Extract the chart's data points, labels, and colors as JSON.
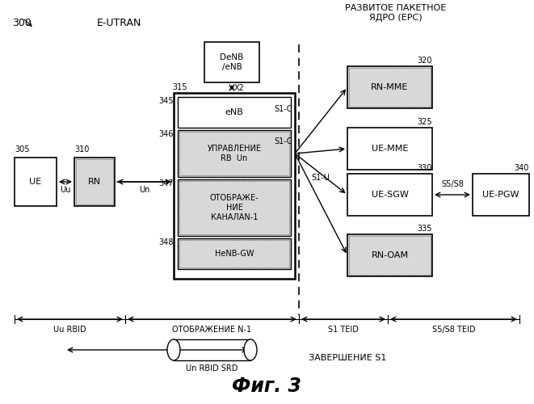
{
  "title": "Фиг. 3",
  "bg_color": "#ffffff",
  "label_300": "300",
  "label_eutran": "E-UTRAN",
  "label_epc_title": "РАЗВИТОЕ ПАКЕТНОЕ\nЯДРО (EPC)",
  "fig_w": 6.61,
  "fig_h": 5.0,
  "dpi": 100
}
